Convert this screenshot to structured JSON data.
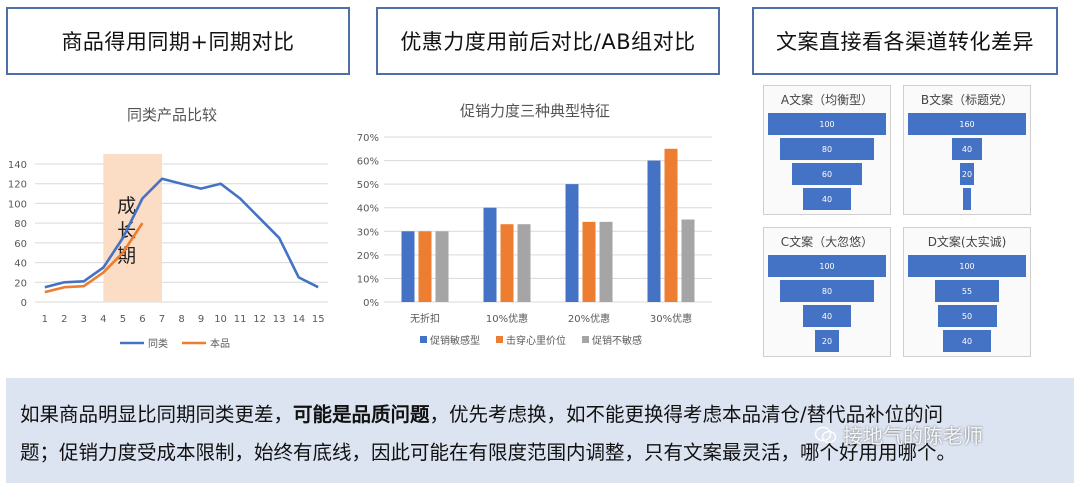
{
  "headers": {
    "h1": "商品得用同期+同期对比",
    "h2": "优惠力度用前后对比/AB组对比",
    "h3": "文案直接看各渠道转化差异"
  },
  "chart_data": [
    {
      "type": "line",
      "title": "同类产品比较",
      "x": [
        1,
        2,
        3,
        4,
        5,
        6,
        7,
        8,
        9,
        10,
        11,
        12,
        13,
        14,
        15
      ],
      "ylim": [
        0,
        140
      ],
      "yticks": [
        0,
        20,
        40,
        60,
        80,
        100,
        120,
        140
      ],
      "grid": true,
      "legend": "bottom",
      "series": [
        {
          "name": "同类",
          "color": "#4472c4",
          "values": [
            15,
            20,
            21,
            35,
            65,
            105,
            125,
            120,
            115,
            120,
            105,
            85,
            65,
            25,
            15
          ]
        },
        {
          "name": "本品",
          "color": "#ed7d31",
          "values": [
            10,
            15,
            16,
            30,
            50,
            80,
            null,
            null,
            null,
            null,
            null,
            null,
            null,
            null,
            null
          ]
        }
      ],
      "annotation": {
        "text": "成长期",
        "x_start": 4,
        "x_end": 7,
        "color": "#fbdcc4"
      }
    },
    {
      "type": "bar",
      "title": "促销力度三种典型特征",
      "categories": [
        "无折扣",
        "10%优惠",
        "20%优惠",
        "30%优惠"
      ],
      "ylim": [
        0,
        70
      ],
      "yticks": [
        "0%",
        "10%",
        "20%",
        "30%",
        "40%",
        "50%",
        "60%",
        "70%"
      ],
      "grid": true,
      "legend": "bottom",
      "series": [
        {
          "name": "促销敏感型",
          "color": "#4472c4",
          "values": [
            30,
            40,
            50,
            60
          ]
        },
        {
          "name": "击穿心里价位",
          "color": "#ed7d31",
          "values": [
            30,
            33,
            34,
            65
          ]
        },
        {
          "name": "促销不敏感",
          "color": "#a5a5a5",
          "values": [
            30,
            33,
            34,
            35
          ]
        }
      ]
    },
    {
      "type": "funnel",
      "title": "A文案（均衡型）",
      "values": [
        100,
        80,
        60,
        40
      ]
    },
    {
      "type": "funnel",
      "title": "B文案（标题党）",
      "values": [
        160,
        40,
        20,
        10
      ],
      "labels": [
        "160",
        "40",
        "20",
        ""
      ]
    },
    {
      "type": "funnel",
      "title": "C文案（大忽悠）",
      "values": [
        100,
        80,
        40,
        20
      ]
    },
    {
      "type": "funnel",
      "title": "D文案(太实诚)",
      "values": [
        100,
        55,
        50,
        40
      ]
    }
  ],
  "note": {
    "line1_a": "如果商品明显比同期同类更差，",
    "line1_bold": "可能是品质问题",
    "line1_b": "，优先考虑换，如不能更换得考虑本品清仓/替代品补位的问",
    "line2": "题；促销力度受成本限制，始终有底线，因此可能在有限度范围内调整，只有文案最灵活，哪个好用用哪个。"
  },
  "watermark": "接地气的陈老师",
  "colors": {
    "blue": "#4472c4",
    "orange": "#ed7d31",
    "gray": "#a5a5a5",
    "note_bg": "#dce4f2",
    "border": "#4f6fa8"
  }
}
